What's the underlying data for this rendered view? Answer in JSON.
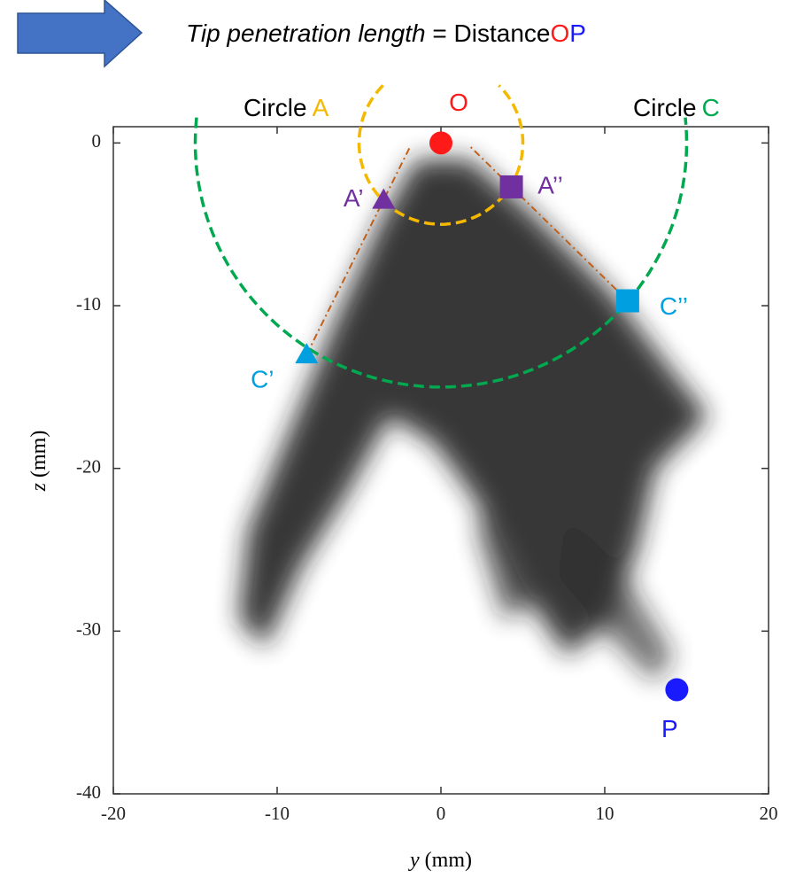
{
  "chart_data": {
    "type": "scatter",
    "title": {
      "term": "Tip penetration length",
      "equals": "=",
      "word": "Distance",
      "from": "O",
      "to": "P"
    },
    "x_label": {
      "var": "y",
      "unit": "(mm)"
    },
    "y_label": {
      "var": "z",
      "unit": "(mm)"
    },
    "xlim": [
      -20,
      20
    ],
    "xticks": [
      -20,
      -10,
      0,
      10,
      20
    ],
    "ylim": [
      -40,
      1
    ],
    "yticks": [
      -40,
      -30,
      -20,
      -10,
      0
    ],
    "points": [
      {
        "label": "O",
        "x": 0,
        "y": 0,
        "marker": "circle",
        "color": "#ff1a1a"
      },
      {
        "label": "A’",
        "x": -3.5,
        "y": -3.5,
        "marker": "triangle",
        "color": "#7030a0"
      },
      {
        "label": "A’’",
        "x": 4.3,
        "y": -2.7,
        "marker": "square",
        "color": "#7030a0"
      },
      {
        "label": "C’",
        "x": -8.2,
        "y": -13,
        "marker": "triangle",
        "color": "#00a0e0"
      },
      {
        "label": "C’’",
        "x": 11.4,
        "y": -9.7,
        "marker": "square",
        "color": "#00a0e0"
      },
      {
        "label": "P",
        "x": 14.4,
        "y": -33.6,
        "marker": "circle",
        "color": "#1a1aff"
      }
    ],
    "circles": [
      {
        "word": "Circle",
        "letter": "A",
        "radius": 5,
        "color": "#f5b800"
      },
      {
        "word": "Circle",
        "letter": "C",
        "radius": 15,
        "color": "#00a84f"
      }
    ],
    "line_color": "#c0601a"
  }
}
